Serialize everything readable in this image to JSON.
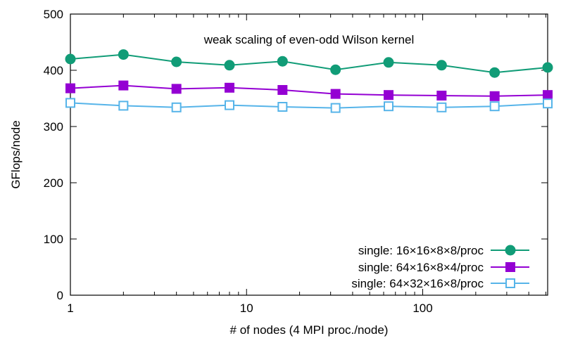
{
  "chart_data": {
    "type": "line",
    "title": "weak scaling of even-odd Wilson kernel",
    "xlabel": "# of nodes (4 MPI proc./node)",
    "ylabel": "GFlops/node",
    "x_scale": "log",
    "xlim": [
      1,
      512
    ],
    "ylim": [
      0,
      500
    ],
    "x_ticks": [
      1,
      10,
      100
    ],
    "x_tick_labels": [
      "1",
      "10",
      "100"
    ],
    "y_ticks": [
      0,
      100,
      200,
      300,
      400,
      500
    ],
    "y_tick_labels": [
      "0",
      "100",
      "200",
      "300",
      "400",
      "500"
    ],
    "grid": false,
    "legend_position": "bottom-right",
    "x": [
      1,
      2,
      4,
      8,
      16,
      32,
      64,
      128,
      256,
      512
    ],
    "series": [
      {
        "name": "single: 16×16×8×8/proc",
        "color": "#119C77",
        "marker": "filled-circle",
        "values": [
          420,
          428,
          415,
          409,
          416,
          401,
          414,
          409,
          396,
          405
        ]
      },
      {
        "name": "single: 64×16×8×4/proc",
        "color": "#9400D3",
        "marker": "filled-square",
        "values": [
          368,
          373,
          367,
          369,
          365,
          358,
          356,
          355,
          354,
          356
        ]
      },
      {
        "name": "single: 64×32×16×8/proc",
        "color": "#56B4E9",
        "marker": "open-square",
        "values": [
          342,
          337,
          334,
          338,
          335,
          333,
          336,
          334,
          336,
          341
        ]
      }
    ]
  }
}
